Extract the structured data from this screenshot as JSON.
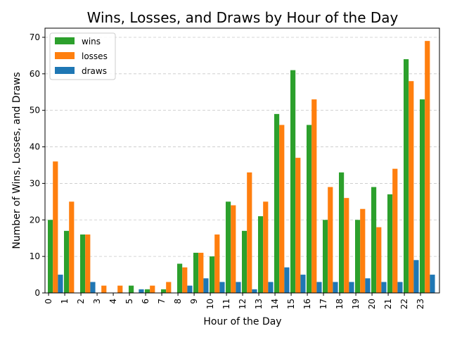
{
  "chart_data": {
    "type": "bar",
    "title": "Wins, Losses, and Draws by Hour of the Day",
    "xlabel": "Hour of the Day",
    "ylabel": "Number of Wins, Losses, and Draws",
    "categories": [
      "0",
      "1",
      "2",
      "3",
      "4",
      "5",
      "6",
      "7",
      "8",
      "9",
      "10",
      "11",
      "12",
      "13",
      "14",
      "15",
      "16",
      "17",
      "18",
      "19",
      "20",
      "21",
      "22",
      "23"
    ],
    "series": [
      {
        "name": "wins",
        "color": "#2ca02c",
        "values": [
          20,
          17,
          16,
          0,
          0,
          2,
          1,
          1,
          8,
          11,
          10,
          25,
          17,
          21,
          49,
          61,
          46,
          20,
          33,
          20,
          29,
          27,
          64,
          53
        ]
      },
      {
        "name": "losses",
        "color": "#ff7f0e",
        "values": [
          36,
          25,
          16,
          2,
          2,
          0,
          2,
          3,
          7,
          11,
          16,
          24,
          33,
          25,
          46,
          37,
          53,
          29,
          26,
          23,
          18,
          34,
          58,
          69
        ]
      },
      {
        "name": "draws",
        "color": "#1f77b4",
        "values": [
          5,
          0,
          3,
          0,
          0,
          1,
          0,
          0,
          2,
          4,
          3,
          3,
          1,
          3,
          7,
          5,
          3,
          3,
          3,
          4,
          3,
          3,
          9,
          5
        ]
      }
    ],
    "ylim": [
      0,
      72.5
    ],
    "yticks": [
      0,
      10,
      20,
      30,
      40,
      50,
      60,
      70
    ],
    "grid": "y-dashed",
    "legend_position": "top-left"
  }
}
